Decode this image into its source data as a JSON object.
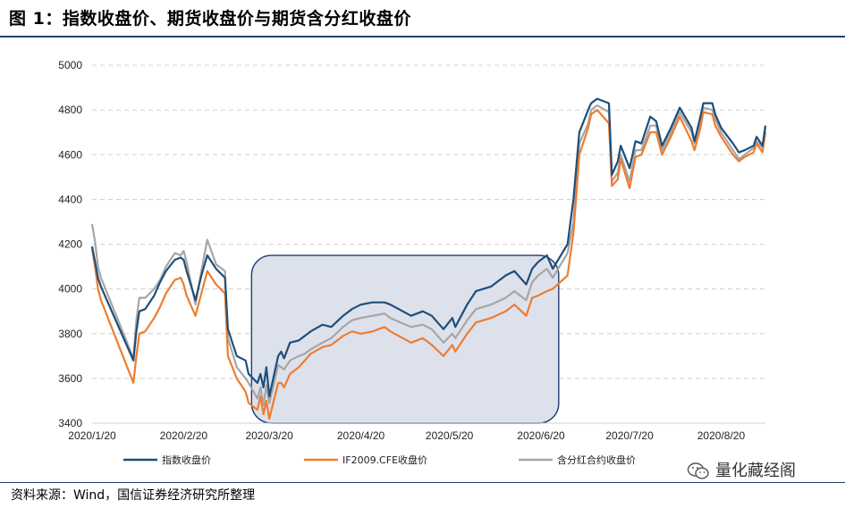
{
  "title": "图 1：指数收盘价、期货收盘价与期货含分红收盘价",
  "source": "资料来源：Wind，国信证券经济研究所整理",
  "watermark": "量化藏经阁",
  "colors": {
    "index": "#1f4e79",
    "futures": "#ed7d31",
    "futures_div": "#a6a6a6",
    "highlight_fill": "#dde1ec",
    "highlight_stroke": "#1e3f6e"
  },
  "chart_data": {
    "type": "line",
    "xlabel": "",
    "ylabel": "",
    "ylim": [
      3400,
      5000
    ],
    "yticks": [
      3400,
      3600,
      3800,
      4000,
      4200,
      4400,
      4600,
      4800,
      5000
    ],
    "xtick_labels": [
      "2020/1/20",
      "2020/2/20",
      "2020/3/20",
      "2020/4/20",
      "2020/5/20",
      "2020/6/20",
      "2020/7/20",
      "2020/8/20"
    ],
    "grid": "horizontal dashed",
    "legend": "bottom",
    "annotations": [
      {
        "type": "rounded-rect",
        "x_from": "2020/3/14",
        "x_to": "2020/6/26",
        "y_from": 3400,
        "y_to": 4150
      }
    ],
    "x": [
      "2020/1/20",
      "2020/1/21",
      "2020/1/22",
      "2020/1/23",
      "2020/2/3",
      "2020/2/4",
      "2020/2/5",
      "2020/2/7",
      "2020/2/10",
      "2020/2/12",
      "2020/2/14",
      "2020/2/17",
      "2020/2/19",
      "2020/2/20",
      "2020/2/21",
      "2020/2/24",
      "2020/2/26",
      "2020/2/28",
      "2020/3/2",
      "2020/3/5",
      "2020/3/6",
      "2020/3/9",
      "2020/3/12",
      "2020/3/13",
      "2020/3/16",
      "2020/3/17",
      "2020/3/18",
      "2020/3/19",
      "2020/3/20",
      "2020/3/23",
      "2020/3/24",
      "2020/3/25",
      "2020/3/27",
      "2020/3/30",
      "2020/4/1",
      "2020/4/3",
      "2020/4/7",
      "2020/4/10",
      "2020/4/14",
      "2020/4/17",
      "2020/4/20",
      "2020/4/24",
      "2020/4/28",
      "2020/4/30",
      "2020/5/7",
      "2020/5/11",
      "2020/5/14",
      "2020/5/18",
      "2020/5/21",
      "2020/5/22",
      "2020/5/26",
      "2020/5/29",
      "2020/6/3",
      "2020/6/8",
      "2020/6/11",
      "2020/6/15",
      "2020/6/17",
      "2020/6/19",
      "2020/6/22",
      "2020/6/24",
      "2020/6/29",
      "2020/7/1",
      "2020/7/3",
      "2020/7/6",
      "2020/7/7",
      "2020/7/9",
      "2020/7/13",
      "2020/7/14",
      "2020/7/16",
      "2020/7/17",
      "2020/7/20",
      "2020/7/22",
      "2020/7/24",
      "2020/7/27",
      "2020/7/29",
      "2020/7/31",
      "2020/8/3",
      "2020/8/6",
      "2020/8/10",
      "2020/8/11",
      "2020/8/13",
      "2020/8/14",
      "2020/8/17",
      "2020/8/18",
      "2020/8/20",
      "2020/8/24",
      "2020/8/26",
      "2020/8/28",
      "2020/8/31",
      "2020/9/1",
      "2020/9/3",
      "2020/9/4"
    ],
    "series": [
      {
        "name": "指数收盘价",
        "color": "#1f4e79",
        "values": [
          4190,
          4120,
          4050,
          4010,
          3680,
          3810,
          3900,
          3910,
          3970,
          4030,
          4080,
          4130,
          4140,
          4130,
          4080,
          3950,
          4060,
          4150,
          4090,
          4050,
          3820,
          3700,
          3680,
          3620,
          3580,
          3620,
          3560,
          3650,
          3520,
          3700,
          3720,
          3690,
          3760,
          3770,
          3790,
          3810,
          3840,
          3830,
          3880,
          3910,
          3930,
          3940,
          3940,
          3930,
          3880,
          3900,
          3880,
          3820,
          3870,
          3830,
          3930,
          3990,
          4010,
          4060,
          4080,
          4020,
          4090,
          4120,
          4150,
          4090,
          4200,
          4400,
          4700,
          4800,
          4830,
          4850,
          4830,
          4510,
          4570,
          4640,
          4540,
          4660,
          4650,
          4770,
          4750,
          4640,
          4720,
          4810,
          4720,
          4660,
          4770,
          4830,
          4830,
          4780,
          4720,
          4650,
          4610,
          4620,
          4640,
          4680,
          4640,
          4730
        ]
      },
      {
        "name": "IF2009.CFE收盘价",
        "color": "#ed7d31",
        "values": [
          4180,
          4100,
          4000,
          3950,
          3580,
          3700,
          3800,
          3810,
          3870,
          3920,
          3980,
          4040,
          4050,
          4020,
          3970,
          3880,
          3980,
          4080,
          4020,
          3980,
          3700,
          3600,
          3540,
          3490,
          3460,
          3520,
          3440,
          3500,
          3420,
          3580,
          3580,
          3560,
          3620,
          3650,
          3680,
          3710,
          3740,
          3750,
          3790,
          3810,
          3800,
          3810,
          3830,
          3810,
          3760,
          3780,
          3750,
          3700,
          3750,
          3720,
          3800,
          3850,
          3870,
          3900,
          3930,
          3880,
          3960,
          3970,
          3990,
          4000,
          4060,
          4250,
          4600,
          4720,
          4780,
          4800,
          4740,
          4460,
          4490,
          4580,
          4450,
          4590,
          4600,
          4700,
          4700,
          4600,
          4680,
          4770,
          4660,
          4620,
          4720,
          4790,
          4780,
          4730,
          4680,
          4600,
          4570,
          4590,
          4610,
          4650,
          4610,
          4700
        ]
      },
      {
        "name": "含分红合约收盘价",
        "color": "#a6a6a6",
        "values": [
          4290,
          4210,
          4100,
          4050,
          3690,
          3860,
          3960,
          3960,
          4000,
          4040,
          4100,
          4160,
          4150,
          4170,
          4120,
          3930,
          4080,
          4220,
          4110,
          4080,
          3780,
          3650,
          3600,
          3580,
          3510,
          3560,
          3480,
          3570,
          3490,
          3660,
          3650,
          3640,
          3680,
          3700,
          3710,
          3730,
          3760,
          3780,
          3830,
          3860,
          3870,
          3880,
          3890,
          3870,
          3830,
          3840,
          3820,
          3760,
          3800,
          3780,
          3860,
          3910,
          3930,
          3960,
          3990,
          3950,
          4030,
          4060,
          4090,
          4050,
          4160,
          4300,
          4650,
          4740,
          4800,
          4820,
          4790,
          4480,
          4520,
          4600,
          4480,
          4620,
          4620,
          4730,
          4730,
          4620,
          4700,
          4790,
          4700,
          4650,
          4750,
          4810,
          4800,
          4760,
          4700,
          4620,
          4580,
          4600,
          4630,
          4660,
          4630,
          4720
        ]
      }
    ]
  }
}
